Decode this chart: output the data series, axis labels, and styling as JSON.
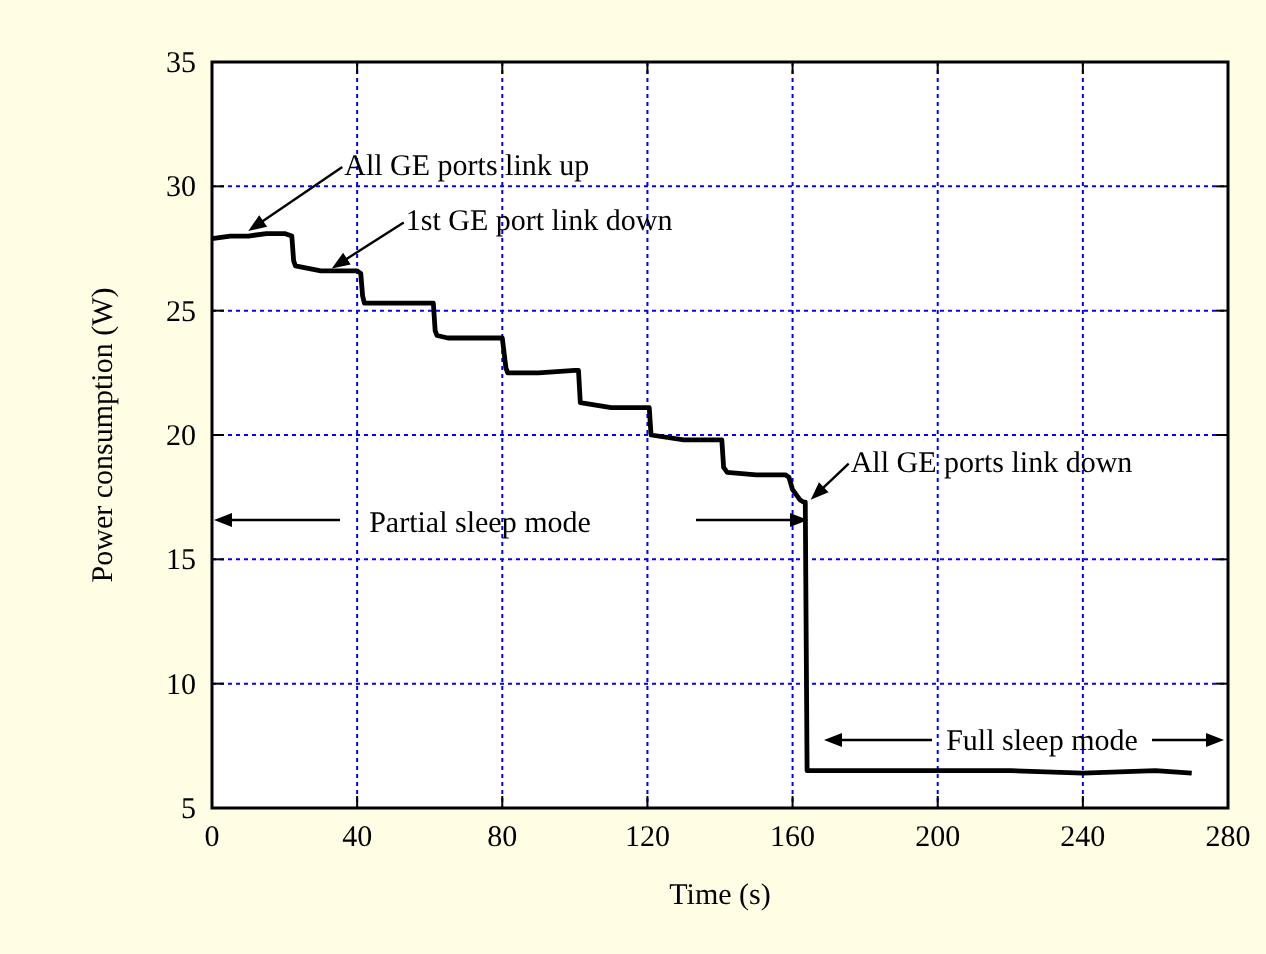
{
  "chart_data": {
    "type": "line",
    "xlabel": "Time (s)",
    "ylabel": "Power consumption (W)",
    "xlim": [
      0,
      280
    ],
    "ylim": [
      5,
      35
    ],
    "xticks": [
      0,
      40,
      80,
      120,
      160,
      200,
      240,
      280
    ],
    "yticks": [
      5,
      10,
      15,
      20,
      25,
      30,
      35
    ],
    "grid": true,
    "series": [
      {
        "color": "#000000",
        "x": [
          0,
          5,
          10,
          15,
          20,
          22,
          22.5,
          23,
          30,
          35,
          40,
          41,
          41.5,
          42,
          50,
          60,
          61,
          61.5,
          62,
          65,
          70,
          80,
          81,
          81.5,
          90,
          100,
          101,
          101.5,
          110,
          120,
          120.5,
          121,
          130,
          140,
          140.5,
          141,
          142,
          150,
          158,
          159,
          160,
          162,
          163,
          163.5,
          164,
          170,
          180,
          200,
          220,
          240,
          260,
          270
        ],
        "values": [
          27.9,
          28.0,
          28.0,
          28.1,
          28.1,
          28.0,
          27.0,
          26.8,
          26.6,
          26.6,
          26.6,
          26.5,
          25.6,
          25.3,
          25.3,
          25.3,
          25.3,
          24.2,
          24.0,
          23.9,
          23.9,
          23.9,
          22.7,
          22.5,
          22.5,
          22.6,
          22.6,
          21.3,
          21.1,
          21.1,
          21.1,
          20.0,
          19.8,
          19.8,
          19.8,
          18.7,
          18.5,
          18.4,
          18.4,
          18.3,
          17.8,
          17.4,
          17.3,
          17.3,
          6.5,
          6.5,
          6.5,
          6.5,
          6.5,
          6.4,
          6.5,
          6.4
        ]
      }
    ],
    "annotations": [
      {
        "text": "All GE ports link up",
        "x": 10,
        "y": 28.2
      },
      {
        "text": "1st GE port link down",
        "x": 33,
        "y": 26.7
      },
      {
        "text": "All GE ports link down",
        "x": 165,
        "y": 17.4
      },
      "Partial sleep mode",
      "Full sleep mode"
    ]
  }
}
